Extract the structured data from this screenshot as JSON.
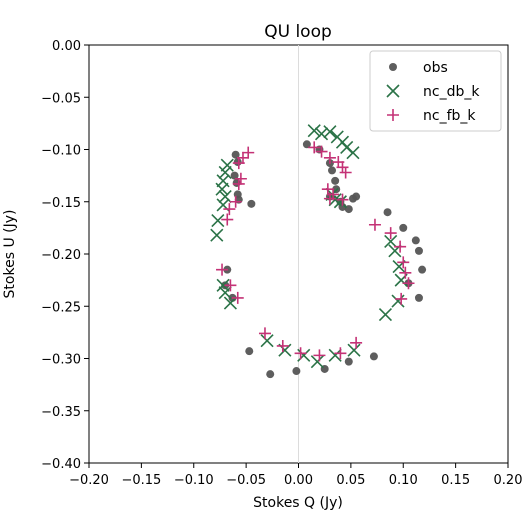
{
  "chart_data": {
    "type": "scatter",
    "title": "QU loop",
    "xlabel": "Stokes Q (Jy)",
    "ylabel": "Stokes U (Jy)",
    "xlim": [
      -0.2,
      0.2
    ],
    "ylim": [
      -0.4,
      0.0
    ],
    "grid": false,
    "zero_line": "x=0",
    "legend_position": "top-right",
    "x_ticks": [
      "−0.20",
      "−0.15",
      "−0.10",
      "−0.05",
      "0.00",
      "0.05",
      "0.10",
      "0.15",
      "0.20"
    ],
    "x_tick_values": [
      -0.2,
      -0.15,
      -0.1,
      -0.05,
      0.0,
      0.05,
      0.1,
      0.15,
      0.2
    ],
    "y_ticks": [
      "0.00",
      "−0.05",
      "−0.10",
      "−0.15",
      "−0.20",
      "−0.25",
      "−0.30",
      "−0.35",
      "−0.40"
    ],
    "y_tick_values": [
      0.0,
      -0.05,
      -0.1,
      -0.15,
      -0.2,
      -0.25,
      -0.3,
      -0.35,
      -0.4
    ],
    "series": [
      {
        "name": "obs",
        "marker": "circle",
        "color": "#555555",
        "points": [
          [
            0.008,
            -0.095
          ],
          [
            0.02,
            -0.1
          ],
          [
            0.03,
            -0.113
          ],
          [
            0.032,
            -0.12
          ],
          [
            0.035,
            -0.13
          ],
          [
            0.036,
            -0.138
          ],
          [
            0.04,
            -0.15
          ],
          [
            0.042,
            -0.155
          ],
          [
            0.048,
            -0.157
          ],
          [
            0.052,
            -0.147
          ],
          [
            0.055,
            -0.145
          ],
          [
            0.03,
            -0.145
          ],
          [
            -0.06,
            -0.105
          ],
          [
            -0.058,
            -0.112
          ],
          [
            -0.061,
            -0.125
          ],
          [
            -0.059,
            -0.132
          ],
          [
            -0.058,
            -0.143
          ],
          [
            -0.045,
            -0.152
          ],
          [
            -0.057,
            -0.148
          ],
          [
            -0.068,
            -0.215
          ],
          [
            -0.07,
            -0.23
          ],
          [
            -0.063,
            -0.242
          ],
          [
            0.085,
            -0.16
          ],
          [
            0.1,
            -0.175
          ],
          [
            0.112,
            -0.187
          ],
          [
            0.115,
            -0.197
          ],
          [
            0.118,
            -0.215
          ],
          [
            0.105,
            -0.228
          ],
          [
            0.115,
            -0.242
          ],
          [
            0.072,
            -0.298
          ],
          [
            0.048,
            -0.303
          ],
          [
            0.025,
            -0.31
          ],
          [
            -0.002,
            -0.312
          ],
          [
            -0.027,
            -0.315
          ],
          [
            -0.047,
            -0.293
          ]
        ]
      },
      {
        "name": "nc_db_k",
        "marker": "x",
        "color": "#2b7347",
        "points": [
          [
            0.015,
            -0.082
          ],
          [
            0.022,
            -0.085
          ],
          [
            0.03,
            -0.083
          ],
          [
            0.037,
            -0.088
          ],
          [
            0.042,
            -0.093
          ],
          [
            0.046,
            -0.098
          ],
          [
            0.052,
            -0.103
          ],
          [
            -0.068,
            -0.115
          ],
          [
            -0.07,
            -0.122
          ],
          [
            -0.072,
            -0.13
          ],
          [
            -0.073,
            -0.138
          ],
          [
            -0.07,
            -0.145
          ],
          [
            -0.072,
            -0.153
          ],
          [
            -0.077,
            -0.168
          ],
          [
            -0.078,
            -0.182
          ],
          [
            0.032,
            -0.143
          ],
          [
            0.035,
            -0.148
          ],
          [
            0.04,
            -0.15
          ],
          [
            -0.072,
            -0.23
          ],
          [
            -0.07,
            -0.237
          ],
          [
            -0.065,
            -0.247
          ],
          [
            0.088,
            -0.188
          ],
          [
            0.092,
            -0.197
          ],
          [
            0.096,
            -0.212
          ],
          [
            0.098,
            -0.225
          ],
          [
            0.095,
            -0.245
          ],
          [
            0.083,
            -0.258
          ],
          [
            0.053,
            -0.292
          ],
          [
            0.035,
            -0.297
          ],
          [
            0.018,
            -0.303
          ],
          [
            0.005,
            -0.297
          ],
          [
            -0.013,
            -0.292
          ],
          [
            -0.03,
            -0.283
          ]
        ]
      },
      {
        "name": "nc_fb_k",
        "marker": "plus",
        "color": "#c43276",
        "points": [
          [
            0.015,
            -0.098
          ],
          [
            0.022,
            -0.102
          ],
          [
            0.03,
            -0.108
          ],
          [
            0.038,
            -0.112
          ],
          [
            0.042,
            -0.117
          ],
          [
            0.045,
            -0.122
          ],
          [
            0.028,
            -0.138
          ],
          [
            0.033,
            -0.143
          ],
          [
            0.03,
            -0.147
          ],
          [
            0.042,
            -0.148
          ],
          [
            -0.048,
            -0.103
          ],
          [
            -0.053,
            -0.108
          ],
          [
            -0.057,
            -0.113
          ],
          [
            -0.055,
            -0.128
          ],
          [
            -0.057,
            -0.133
          ],
          [
            -0.06,
            -0.15
          ],
          [
            -0.066,
            -0.157
          ],
          [
            -0.068,
            -0.167
          ],
          [
            -0.073,
            -0.215
          ],
          [
            -0.065,
            -0.23
          ],
          [
            -0.058,
            -0.242
          ],
          [
            0.073,
            -0.172
          ],
          [
            0.088,
            -0.18
          ],
          [
            0.097,
            -0.193
          ],
          [
            0.1,
            -0.208
          ],
          [
            0.102,
            -0.218
          ],
          [
            0.105,
            -0.228
          ],
          [
            0.098,
            -0.243
          ],
          [
            0.055,
            -0.285
          ],
          [
            0.04,
            -0.295
          ],
          [
            0.02,
            -0.297
          ],
          [
            0.002,
            -0.295
          ],
          [
            -0.015,
            -0.288
          ],
          [
            -0.032,
            -0.276
          ]
        ]
      }
    ]
  }
}
